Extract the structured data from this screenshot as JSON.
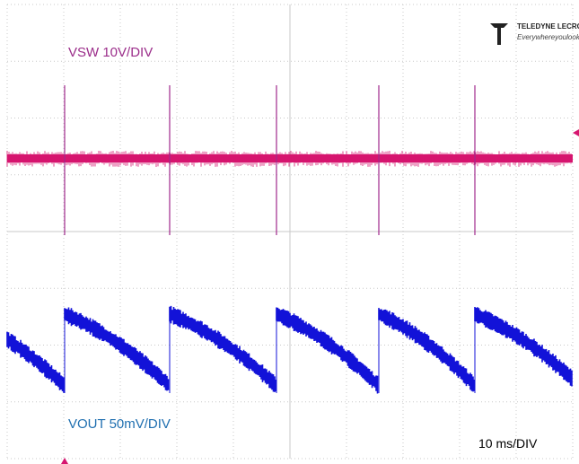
{
  "labels": {
    "vsw": "VSW 10V/DIV",
    "vout": "VOUT 50mV/DIV",
    "timebase": "10 ms/DIV"
  },
  "logo": {
    "brand": "TELEDYNE LECROY",
    "tagline": "Everywhereyoulook"
  }
}
